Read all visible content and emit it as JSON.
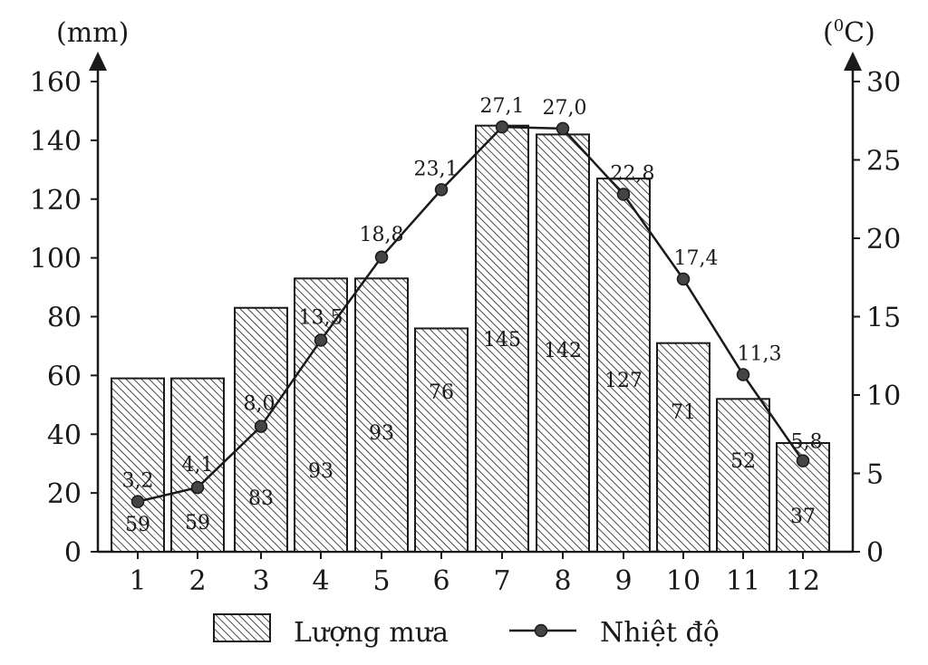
{
  "chart_data": {
    "type": "bar-line-combo",
    "categories": [
      "1",
      "2",
      "3",
      "4",
      "5",
      "6",
      "7",
      "8",
      "9",
      "10",
      "11",
      "12"
    ],
    "series": [
      {
        "name": "Lượng mưa",
        "kind": "bar",
        "axis": "left",
        "values": [
          59,
          59,
          83,
          93,
          93,
          76,
          145,
          142,
          127,
          71,
          52,
          37
        ]
      },
      {
        "name": "Nhiệt độ",
        "kind": "line",
        "axis": "right",
        "values": [
          3.2,
          4.1,
          8.0,
          13.5,
          18.8,
          23.1,
          27.1,
          27.0,
          22.8,
          17.4,
          11.3,
          5.8
        ]
      }
    ],
    "bar_labels": [
      "59",
      "59",
      "83",
      "93",
      "93",
      "76",
      "145",
      "142",
      "127",
      "71",
      "52",
      "37"
    ],
    "line_labels": [
      "3,2",
      "4,1",
      "8,0",
      "13,5",
      "18,8",
      "23,1",
      "27,1",
      "27,0",
      "22,8",
      "17,4",
      "11,3",
      "5,8"
    ],
    "left_axis": {
      "unit": "(mm)",
      "min": 0,
      "max": 160,
      "ticks": [
        0,
        20,
        40,
        60,
        80,
        100,
        120,
        140,
        160
      ]
    },
    "right_axis": {
      "unit_prefix": "(",
      "unit_sup": "0",
      "unit_suffix": "C)",
      "min": 0,
      "max": 30,
      "ticks": [
        0,
        5,
        10,
        15,
        20,
        25,
        30
      ]
    },
    "legend": {
      "bar_label": "Lượng mưa",
      "line_label": "Nhiệt độ",
      "position": "bottom"
    },
    "grid": false
  }
}
